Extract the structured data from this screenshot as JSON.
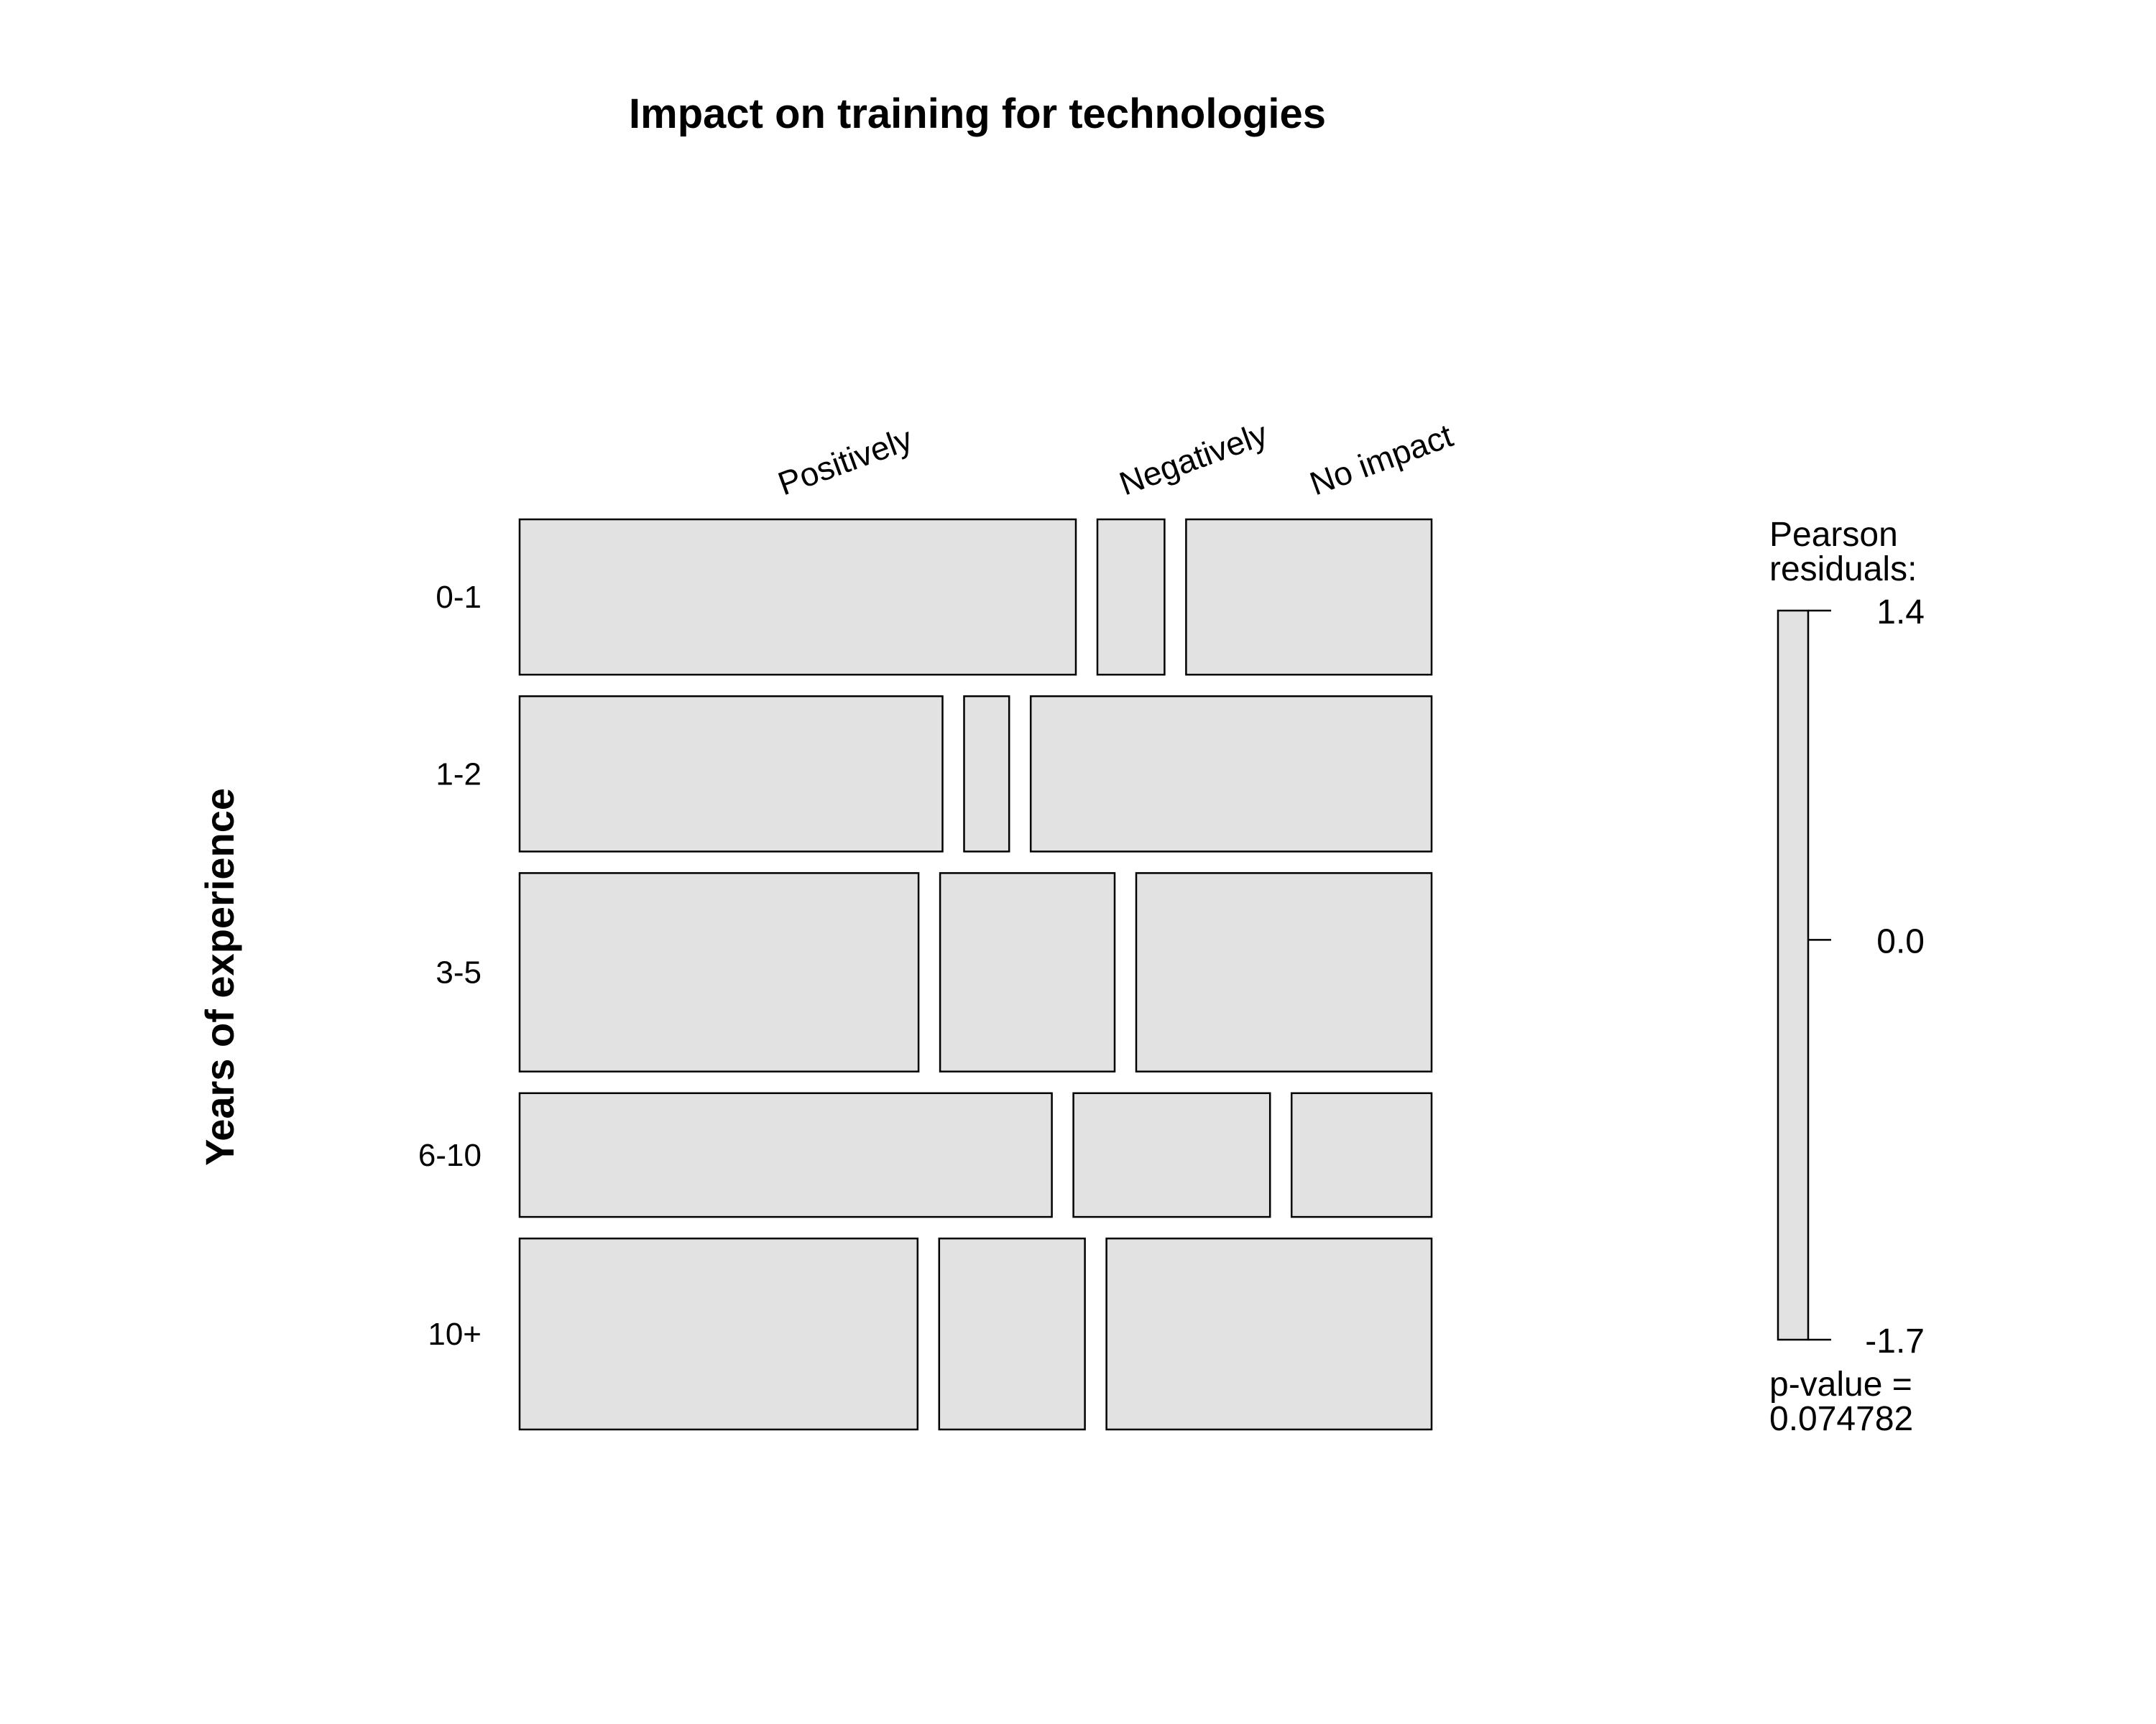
{
  "chart_data": {
    "type": "mosaic",
    "title": "Impact on training for technologies",
    "ylabel": "Years of experience",
    "rows": [
      "0-1",
      "1-2",
      "3-5",
      "6-10",
      "10+"
    ],
    "columns": [
      "Positively",
      "Negatively",
      "No impact"
    ],
    "row_proportions": [
      0.187,
      0.187,
      0.239,
      0.149,
      0.23
    ],
    "cell_proportions": [
      [
        0.58,
        0.07,
        0.256
      ],
      [
        0.441,
        0.047,
        0.418
      ],
      [
        0.416,
        0.182,
        0.308
      ],
      [
        0.555,
        0.205,
        0.146
      ],
      [
        0.415,
        0.152,
        0.339
      ]
    ],
    "fill_color": "#e2e2e2",
    "legend": {
      "title_lines": [
        "Pearson",
        "residuals:"
      ],
      "max": "1.4",
      "mid": "0.0",
      "min": "-1.7",
      "range": [
        -1.7,
        1.4
      ],
      "pvalue_lines": [
        "p-value =",
        "0.074782"
      ]
    }
  }
}
